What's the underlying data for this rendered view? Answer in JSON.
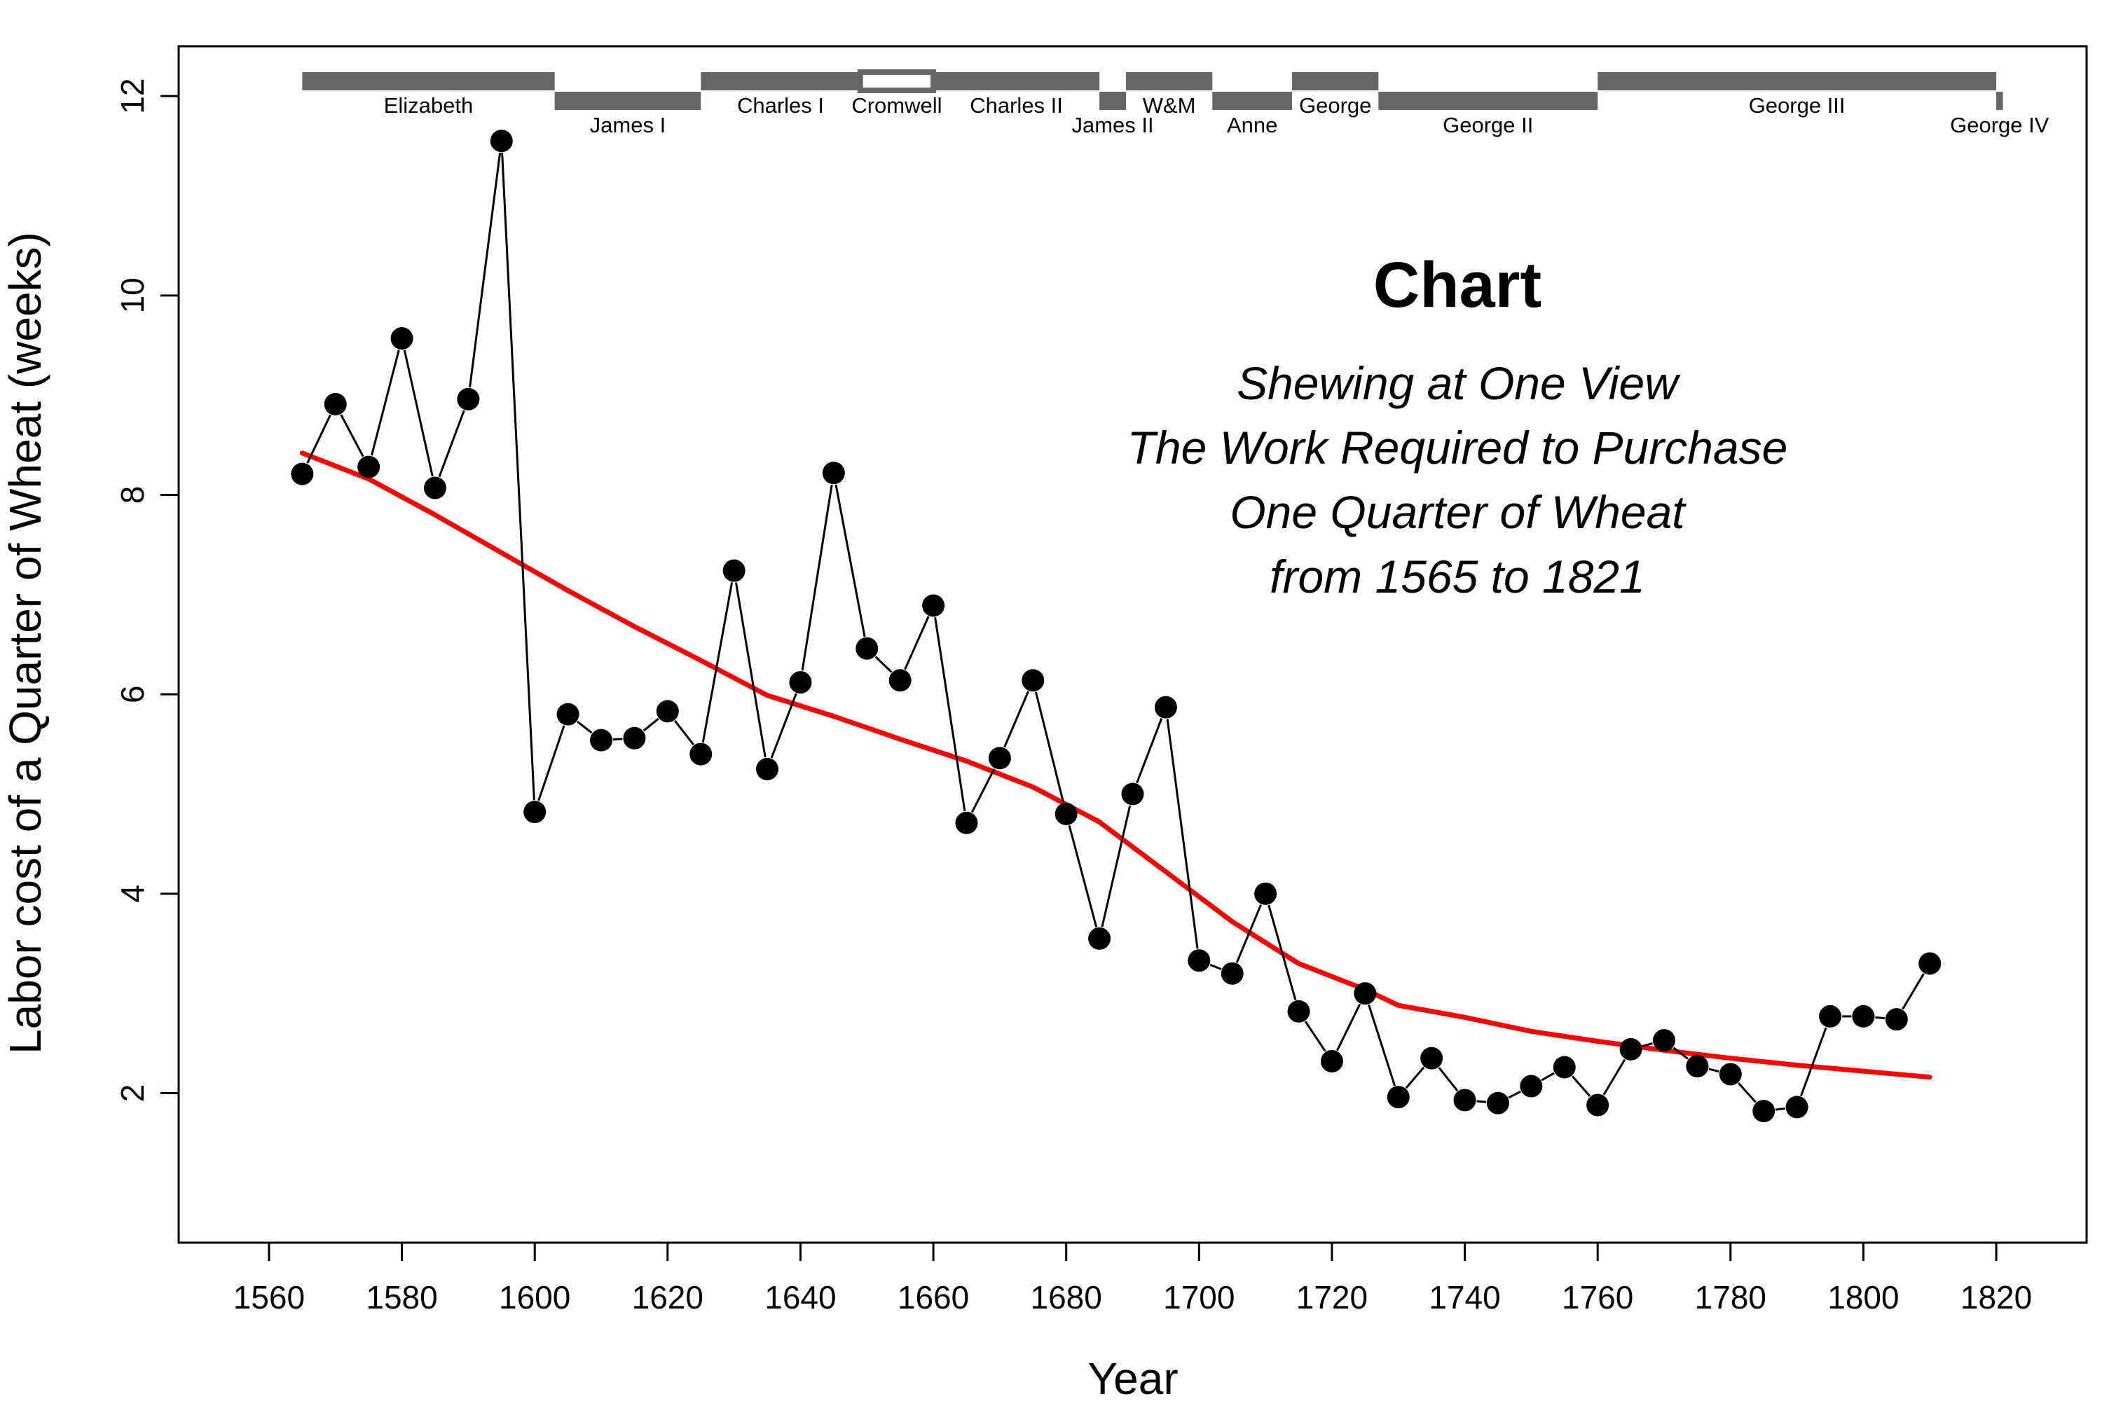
{
  "chart_data": {
    "type": "line",
    "title": "",
    "xlabel": "Year",
    "ylabel": "Labor cost of a Quarter of Wheat (weeks)",
    "xlim": [
      1546.4,
      1833.6
    ],
    "ylim": [
      0.5,
      12.5
    ],
    "x_ticks": [
      1560,
      1580,
      1600,
      1620,
      1640,
      1660,
      1680,
      1700,
      1720,
      1740,
      1760,
      1780,
      1800,
      1820
    ],
    "y_ticks": [
      2,
      4,
      6,
      8,
      10,
      12
    ],
    "grid": false,
    "legend": "none",
    "annotation": {
      "heading": "Chart",
      "lines": [
        "Shewing at One View",
        "The Work Required to Purchase",
        "One Quarter of Wheat",
        "from 1565 to 1821"
      ]
    },
    "series": [
      {
        "kind": "points-connected",
        "color": "#000000",
        "x": [
          1565,
          1570,
          1575,
          1580,
          1585,
          1590,
          1595,
          1600,
          1605,
          1610,
          1615,
          1620,
          1625,
          1630,
          1635,
          1640,
          1645,
          1650,
          1655,
          1660,
          1665,
          1670,
          1675,
          1680,
          1685,
          1690,
          1695,
          1700,
          1705,
          1710,
          1715,
          1720,
          1725,
          1730,
          1735,
          1740,
          1745,
          1750,
          1755,
          1760,
          1765,
          1770,
          1775,
          1780,
          1785,
          1790,
          1795,
          1800,
          1805,
          1810
        ],
        "y": [
          8.21,
          8.91,
          8.28,
          9.57,
          8.07,
          8.96,
          11.55,
          4.82,
          5.8,
          5.54,
          5.56,
          5.83,
          5.4,
          7.24,
          5.25,
          6.12,
          8.22,
          6.46,
          6.14,
          6.89,
          4.71,
          5.36,
          6.14,
          4.8,
          3.55,
          5.0,
          5.87,
          3.33,
          3.2,
          4.0,
          2.82,
          2.32,
          3.0,
          1.96,
          2.35,
          1.93,
          1.9,
          2.07,
          2.26,
          1.88,
          2.44,
          2.53,
          2.27,
          2.19,
          1.82,
          1.86,
          2.77,
          2.77,
          2.74,
          3.3
        ]
      },
      {
        "kind": "smooth-trend",
        "color": "#ff0000",
        "x": [
          1565,
          1575,
          1585,
          1595,
          1605,
          1615,
          1625,
          1635,
          1645,
          1655,
          1665,
          1675,
          1685,
          1695,
          1705,
          1715,
          1725,
          1730,
          1740,
          1750,
          1760,
          1770,
          1780,
          1790,
          1800,
          1810
        ],
        "y": [
          8.42,
          8.16,
          7.8,
          7.42,
          7.04,
          6.68,
          6.34,
          5.99,
          5.78,
          5.55,
          5.33,
          5.07,
          4.72,
          4.22,
          3.72,
          3.3,
          3.04,
          2.88,
          2.76,
          2.62,
          2.52,
          2.43,
          2.35,
          2.28,
          2.22,
          2.16
        ]
      }
    ],
    "reigns": [
      {
        "name": "Elizabeth",
        "start": 1565,
        "end": 1603,
        "level": "upper",
        "fill": "#666666"
      },
      {
        "name": "James I",
        "start": 1603,
        "end": 1625,
        "level": "lower",
        "fill": "#666666"
      },
      {
        "name": "Charles I",
        "start": 1625,
        "end": 1649,
        "level": "upper",
        "fill": "#666666"
      },
      {
        "name": "Cromwell",
        "start": 1649,
        "end": 1660,
        "level": "upper",
        "fill": "#ffffff"
      },
      {
        "name": "Charles II",
        "start": 1660,
        "end": 1685,
        "level": "upper",
        "fill": "#666666"
      },
      {
        "name": "James II",
        "start": 1685,
        "end": 1689,
        "level": "lower",
        "fill": "#666666"
      },
      {
        "name": "W&M",
        "start": 1689,
        "end": 1702,
        "level": "upper",
        "fill": "#666666"
      },
      {
        "name": "Anne",
        "start": 1702,
        "end": 1714,
        "level": "lower",
        "fill": "#666666"
      },
      {
        "name": "George",
        "start": 1714,
        "end": 1727,
        "level": "upper",
        "fill": "#666666"
      },
      {
        "name": "George II",
        "start": 1727,
        "end": 1760,
        "level": "lower",
        "fill": "#666666"
      },
      {
        "name": "George III",
        "start": 1760,
        "end": 1820,
        "level": "upper",
        "fill": "#666666"
      },
      {
        "name": "George IV",
        "start": 1820,
        "end": 1821,
        "level": "lower",
        "fill": "#666666"
      }
    ]
  }
}
